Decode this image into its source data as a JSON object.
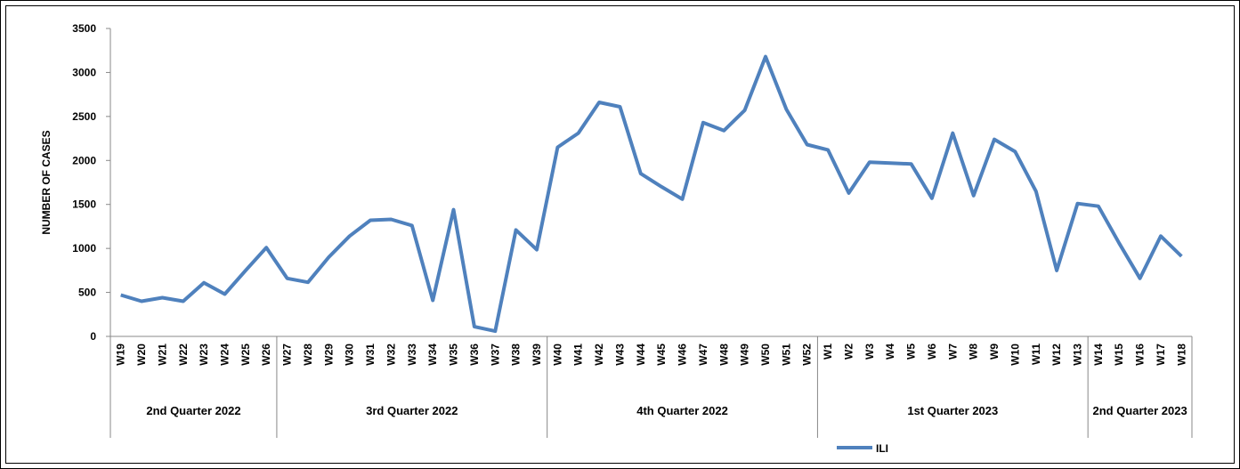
{
  "chart_data": {
    "type": "line",
    "y_label": "NUMBER OF CASES",
    "categories": [
      "W19",
      "W20",
      "W21",
      "W22",
      "W23",
      "W24",
      "W25",
      "W26",
      "W27",
      "W28",
      "W29",
      "W30",
      "W31",
      "W32",
      "W33",
      "W34",
      "W35",
      "W36",
      "W37",
      "W38",
      "W39",
      "W40",
      "W41",
      "W42",
      "W43",
      "W44",
      "W45",
      "W46",
      "W47",
      "W48",
      "W49",
      "W50",
      "W51",
      "W52",
      "W1",
      "W2",
      "W3",
      "W4",
      "W5",
      "W6",
      "W7",
      "W8",
      "W9",
      "W10",
      "W11",
      "W12",
      "W13",
      "W14",
      "W15",
      "W16",
      "W17",
      "W18"
    ],
    "groups": [
      {
        "label": "2nd Quarter 2022",
        "span": 8
      },
      {
        "label": "3rd Quarter 2022",
        "span": 13
      },
      {
        "label": "4th Quarter 2022",
        "span": 13
      },
      {
        "label": "1st Quarter 2023",
        "span": 13
      },
      {
        "label": "2nd Quarter 2023",
        "span": 5
      }
    ],
    "series": [
      {
        "name": "ILI",
        "color": "#4f81bd",
        "values": [
          470,
          400,
          440,
          400,
          610,
          480,
          750,
          1010,
          660,
          615,
          900,
          1140,
          1320,
          1330,
          1260,
          410,
          1440,
          110,
          60,
          1210,
          985,
          2150,
          2310,
          2660,
          2610,
          1850,
          1700,
          1560,
          2430,
          2340,
          2570,
          3180,
          2580,
          2180,
          2120,
          1630,
          1980,
          1970,
          1960,
          1570,
          2310,
          1600,
          2240,
          2100,
          1650,
          750,
          1510,
          1480,
          1060,
          660,
          1140,
          910
        ]
      }
    ],
    "ylim": [
      0,
      3500
    ],
    "yticks": [
      0,
      500,
      1000,
      1500,
      2000,
      2500,
      3000,
      3500
    ],
    "grid": false,
    "legend": "bottom"
  }
}
